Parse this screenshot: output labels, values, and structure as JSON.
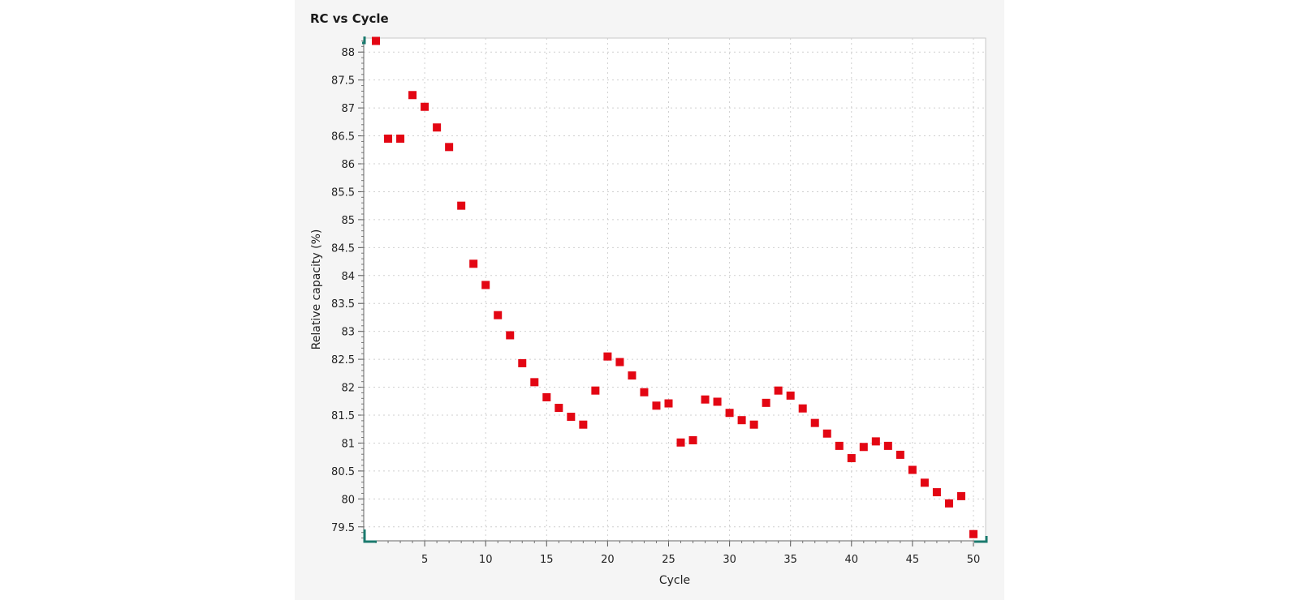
{
  "chart_data": {
    "type": "scatter",
    "title": "RC vs Cycle",
    "xlabel": "Cycle",
    "ylabel": "Relative capacity (%)",
    "xlim": [
      0,
      51
    ],
    "ylim": [
      79.25,
      88.25
    ],
    "xticks": [
      5,
      10,
      15,
      20,
      25,
      30,
      35,
      40,
      45,
      50
    ],
    "yticks": [
      79.5,
      80,
      80.5,
      81,
      81.5,
      82,
      82.5,
      83,
      83.5,
      84,
      84.5,
      85,
      85.5,
      86,
      86.5,
      87,
      87.5,
      88
    ],
    "grid": true,
    "marker_color": "#e30613",
    "accent_color": "#1b7a6e",
    "x": [
      1,
      2,
      3,
      4,
      5,
      6,
      7,
      8,
      9,
      10,
      11,
      12,
      13,
      14,
      15,
      16,
      17,
      18,
      19,
      20,
      21,
      22,
      23,
      24,
      25,
      26,
      27,
      28,
      29,
      30,
      31,
      32,
      33,
      34,
      35,
      36,
      37,
      38,
      39,
      40,
      41,
      42,
      43,
      44,
      45,
      46,
      47,
      48,
      49,
      50
    ],
    "y": [
      88.2,
      86.45,
      86.45,
      87.23,
      87.02,
      86.65,
      86.3,
      85.25,
      84.21,
      83.83,
      83.29,
      82.93,
      82.43,
      82.09,
      81.82,
      81.63,
      81.47,
      81.33,
      81.94,
      82.55,
      82.45,
      82.21,
      81.91,
      81.67,
      81.71,
      81.01,
      81.05,
      81.78,
      81.74,
      81.54,
      81.41,
      81.33,
      81.72,
      81.94,
      81.85,
      81.62,
      81.36,
      81.17,
      80.95,
      80.73,
      80.93,
      81.03,
      80.95,
      80.79,
      80.52,
      80.29,
      80.12,
      79.92,
      80.05,
      79.37
    ]
  }
}
